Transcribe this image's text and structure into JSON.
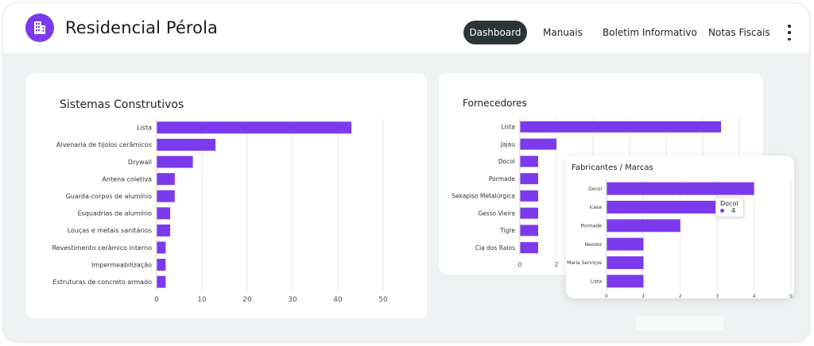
{
  "app": {
    "title": "Residencial Pérola",
    "logo_icon": "building-icon"
  },
  "nav": {
    "items": [
      {
        "label": "Dashboard",
        "active": true
      },
      {
        "label": "Manuais",
        "active": false
      },
      {
        "label": "Boletim Informativo",
        "active": false
      },
      {
        "label": "Notas Fiscais",
        "active": false
      }
    ],
    "more_icon": "kebab-menu-icon"
  },
  "colors": {
    "accent": "#7c3aed",
    "bar": "#7c3aed",
    "active_pill": "#2b3438"
  },
  "chart_data": [
    {
      "type": "bar",
      "orientation": "horizontal",
      "title": "Sistemas Construtivos",
      "categories": [
        "Lista",
        "Alvenaria de tijolos cerâmicos",
        "Drywall",
        "Antena coletiva",
        "Guarda-corpos de alumínio",
        "Esquadrias de alumínio",
        "Louças e metais sanitários",
        "Revestimento cerâmico interno",
        "Impermeabilização",
        "Estruturas de concreto armado"
      ],
      "values": [
        43,
        13,
        8,
        4,
        4,
        3,
        3,
        2,
        2,
        2
      ],
      "xlim": [
        0,
        50
      ],
      "xticks": [
        0,
        10,
        20,
        30,
        40,
        50
      ],
      "grid": true
    },
    {
      "type": "bar",
      "orientation": "horizontal",
      "title": "Fornecedores",
      "categories": [
        "Lista",
        "Jajau",
        "Docol",
        "Pormade",
        "Sekapiso Metalúrgica",
        "Gesso Vieira",
        "Tigre",
        "Cia dos Ralos"
      ],
      "values": [
        11,
        2,
        1,
        1,
        1,
        1,
        1,
        1
      ],
      "xlim": [
        0,
        12
      ],
      "xticks": [
        0,
        2
      ],
      "grid": true
    },
    {
      "type": "bar",
      "orientation": "horizontal",
      "title": "Fabricantes / Marcas",
      "categories": [
        "Docol",
        "Icasa",
        "Pormade",
        "Neorex",
        "Maria Serviços",
        "Lista"
      ],
      "values": [
        4,
        3,
        2,
        1,
        1,
        1
      ],
      "xlim": [
        0,
        5
      ],
      "xticks": [
        0,
        1,
        2,
        3,
        4,
        5
      ],
      "grid": true,
      "tooltip": {
        "label": "Docol",
        "value": "4"
      }
    }
  ]
}
